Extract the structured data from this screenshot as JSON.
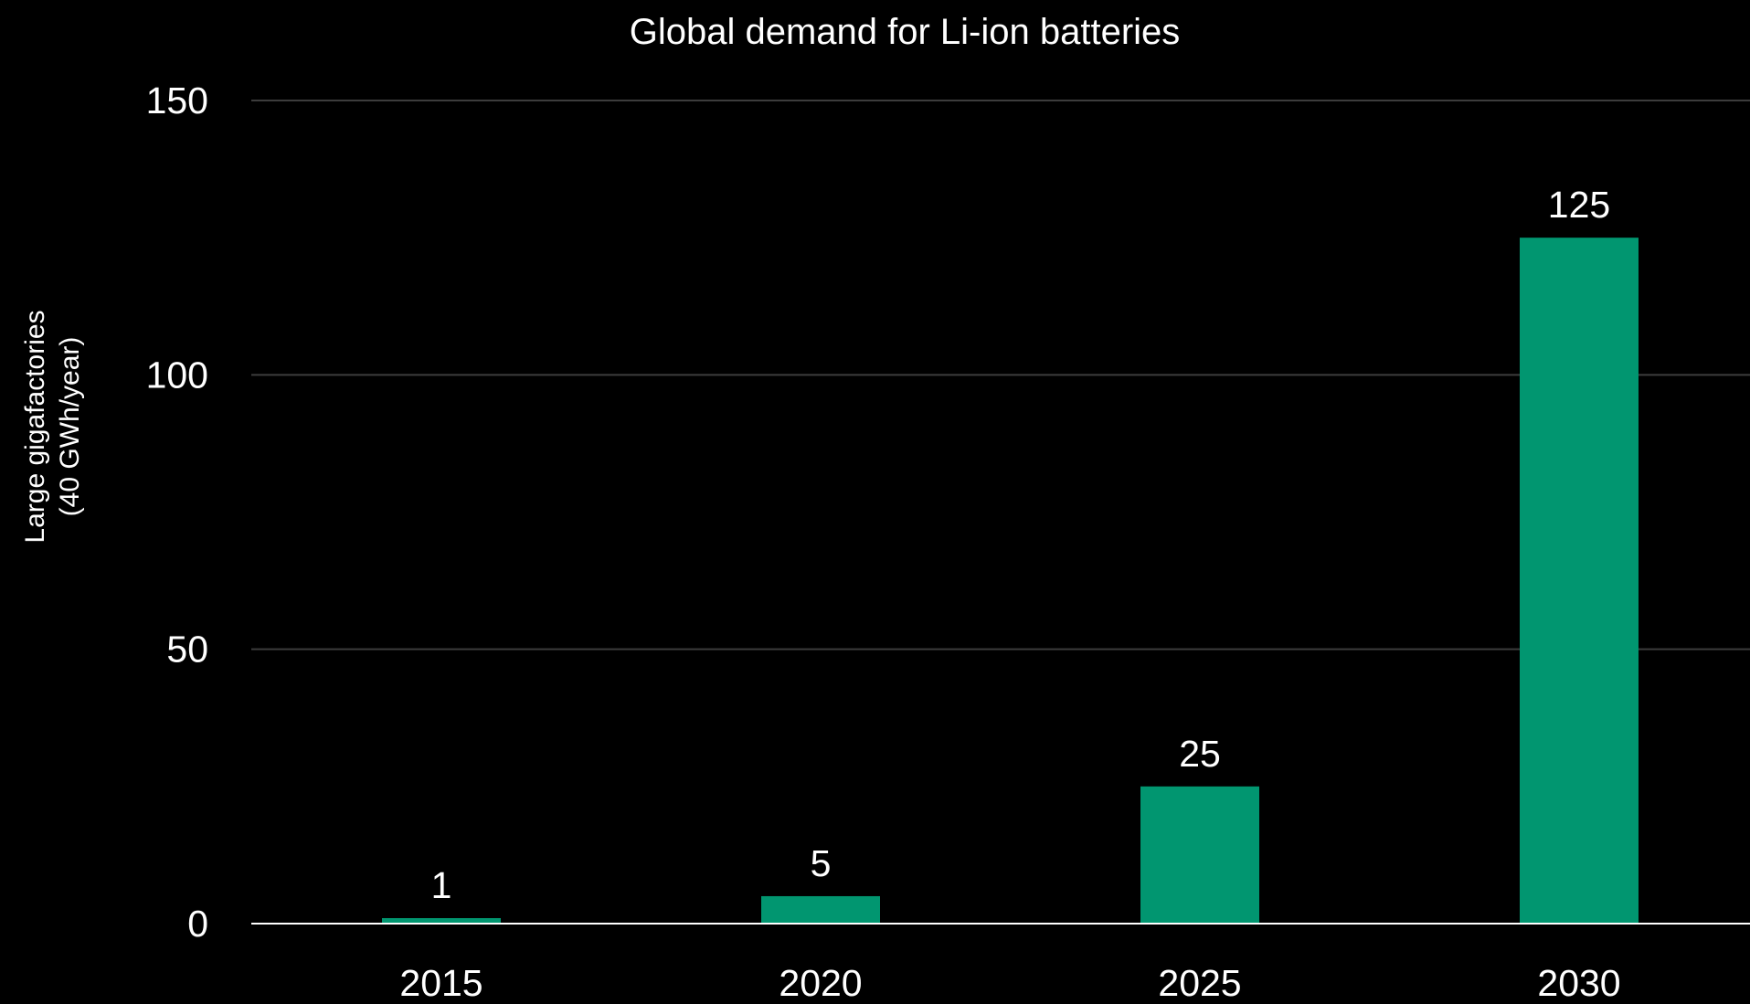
{
  "chart_data": {
    "type": "bar",
    "title": "Global demand for Li-ion batteries",
    "ylabel_line1": "Large gigafactories",
    "ylabel_line2": "(40 GWh/year)",
    "xlabel": "",
    "categories": [
      "2015",
      "2020",
      "2025",
      "2030"
    ],
    "values": [
      1,
      5,
      25,
      125
    ],
    "data_labels": [
      "1",
      "5",
      "25",
      "125"
    ],
    "ylim": [
      0,
      150
    ],
    "yticks": [
      0,
      50,
      100,
      150
    ],
    "ytick_labels": [
      "0",
      "50",
      "100",
      "150"
    ],
    "grid": true,
    "legend": "none",
    "colors": {
      "bar": "#019670",
      "background": "#000000",
      "grid": "#3c3c3c",
      "text": "#ffffff"
    }
  }
}
